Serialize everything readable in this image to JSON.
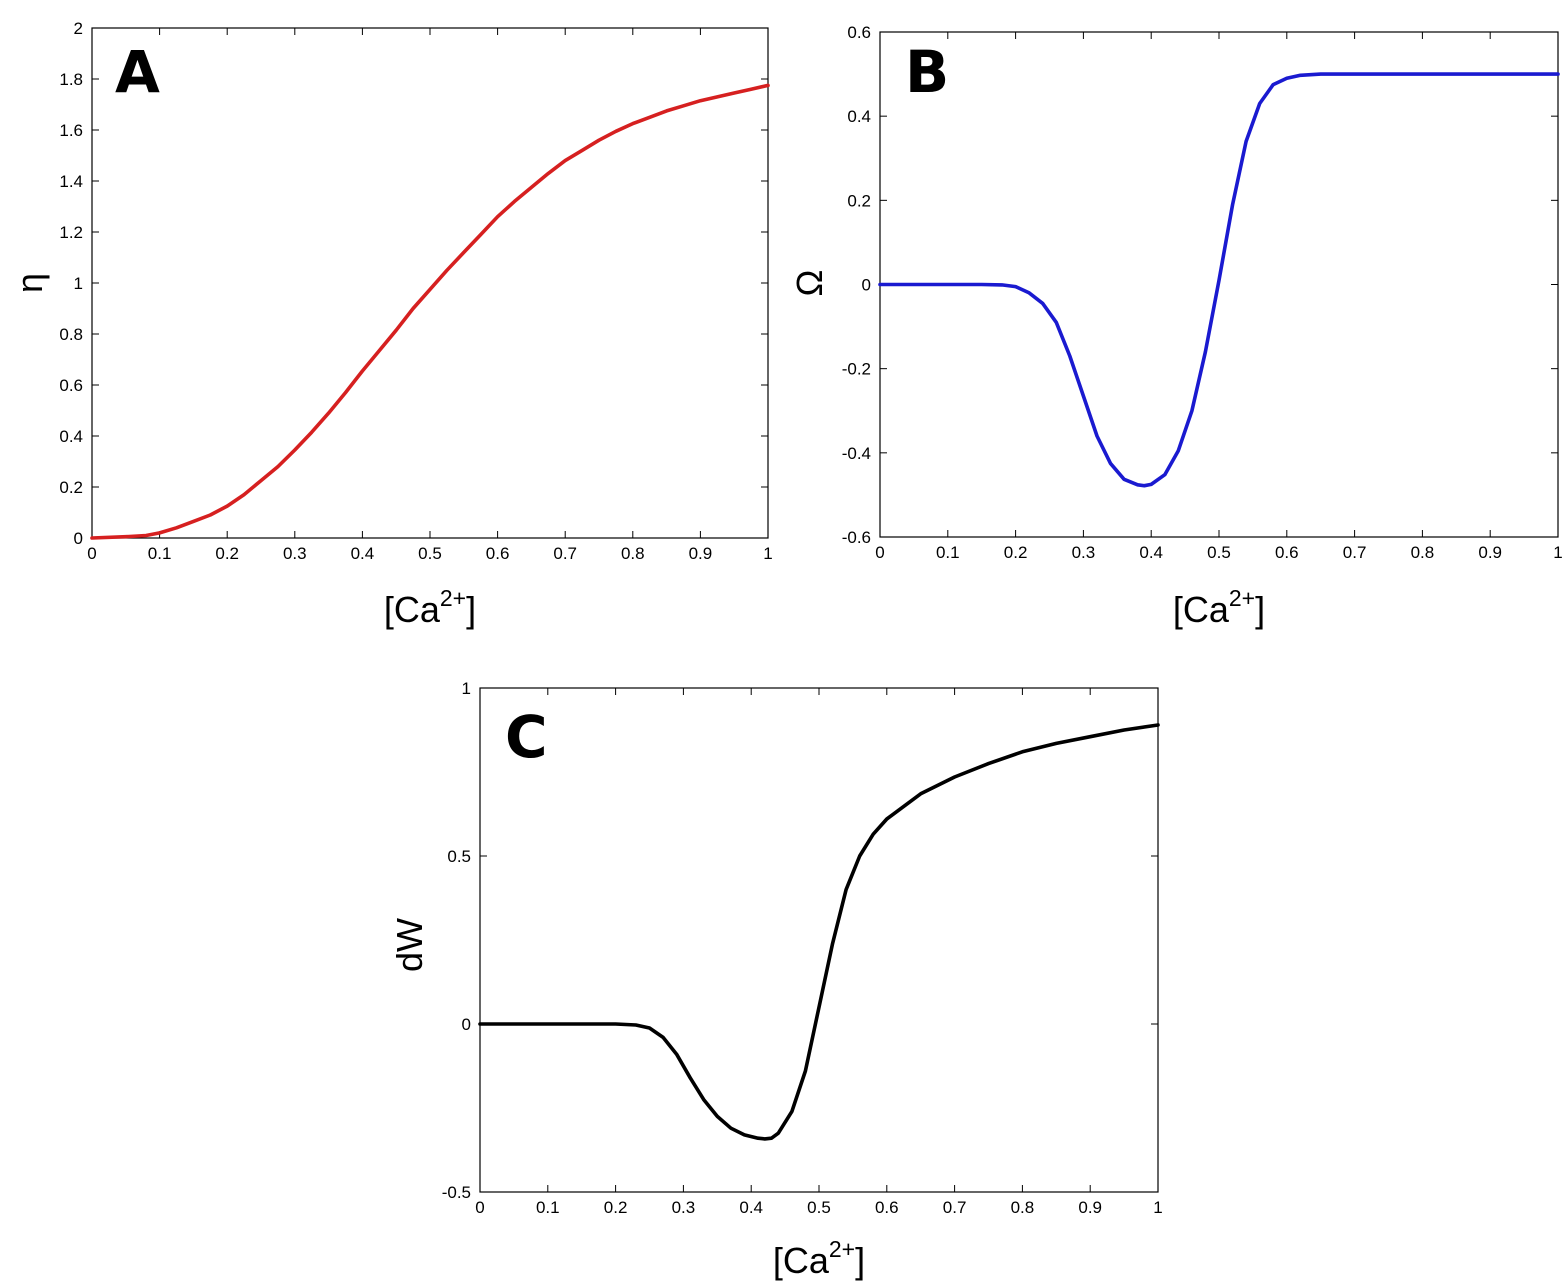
{
  "chart_data": [
    {
      "panel": "A",
      "type": "line",
      "title": "",
      "xlabel": "[Ca",
      "xlabel_sup": "2+",
      "xlabel_close": "]",
      "ylabel": "η",
      "xlim": [
        0,
        1
      ],
      "ylim": [
        0,
        2
      ],
      "xticks": [
        "0",
        "0.1",
        "0.2",
        "0.3",
        "0.4",
        "0.5",
        "0.6",
        "0.7",
        "0.8",
        "0.9",
        "1"
      ],
      "yticks": [
        "0",
        "0.2",
        "0.4",
        "0.6",
        "0.8",
        "1",
        "1.2",
        "1.4",
        "1.6",
        "1.8",
        "2"
      ],
      "grid": false,
      "color": "#d62020",
      "series": [
        {
          "x": [
            0,
            0.05,
            0.08,
            0.1,
            0.125,
            0.15,
            0.175,
            0.2,
            0.225,
            0.25,
            0.275,
            0.3,
            0.325,
            0.35,
            0.375,
            0.4,
            0.425,
            0.45,
            0.475,
            0.5,
            0.525,
            0.55,
            0.575,
            0.6,
            0.625,
            0.65,
            0.675,
            0.7,
            0.725,
            0.75,
            0.775,
            0.8,
            0.825,
            0.85,
            0.875,
            0.9,
            0.925,
            0.95,
            0.975,
            1.0
          ],
          "y": [
            0,
            0.005,
            0.01,
            0.02,
            0.04,
            0.065,
            0.09,
            0.125,
            0.17,
            0.225,
            0.28,
            0.345,
            0.415,
            0.49,
            0.57,
            0.655,
            0.735,
            0.815,
            0.9,
            0.975,
            1.05,
            1.12,
            1.19,
            1.26,
            1.32,
            1.375,
            1.43,
            1.48,
            1.52,
            1.56,
            1.595,
            1.625,
            1.65,
            1.675,
            1.695,
            1.715,
            1.73,
            1.745,
            1.76,
            1.775
          ]
        }
      ]
    },
    {
      "panel": "B",
      "type": "line",
      "title": "",
      "xlabel": "[Ca",
      "xlabel_sup": "2+",
      "xlabel_close": "]",
      "ylabel": "Ω",
      "xlim": [
        0,
        1
      ],
      "ylim": [
        -0.6,
        0.6
      ],
      "xticks": [
        "0",
        "0.1",
        "0.2",
        "0.3",
        "0.4",
        "0.5",
        "0.6",
        "0.7",
        "0.8",
        "0.9",
        "1"
      ],
      "yticks": [
        "-0.6",
        "-0.4",
        "-0.2",
        "0",
        "0.2",
        "0.4",
        "0.6"
      ],
      "grid": false,
      "color": "#1a1ad0",
      "series": [
        {
          "x": [
            0,
            0.15,
            0.18,
            0.2,
            0.22,
            0.24,
            0.26,
            0.28,
            0.3,
            0.32,
            0.34,
            0.36,
            0.38,
            0.39,
            0.4,
            0.42,
            0.44,
            0.46,
            0.48,
            0.5,
            0.52,
            0.54,
            0.56,
            0.58,
            0.6,
            0.62,
            0.65,
            0.7,
            0.8,
            1.0
          ],
          "y": [
            0,
            0,
            -0.001,
            -0.005,
            -0.02,
            -0.045,
            -0.09,
            -0.17,
            -0.265,
            -0.36,
            -0.425,
            -0.463,
            -0.476,
            -0.478,
            -0.475,
            -0.452,
            -0.395,
            -0.3,
            -0.16,
            0.01,
            0.19,
            0.34,
            0.43,
            0.475,
            0.49,
            0.497,
            0.5,
            0.5,
            0.5,
            0.5
          ]
        }
      ]
    },
    {
      "panel": "C",
      "type": "line",
      "title": "",
      "xlabel": "[Ca",
      "xlabel_sup": "2+",
      "xlabel_close": "]",
      "ylabel": "dW",
      "xlim": [
        0,
        1
      ],
      "ylim": [
        -0.5,
        1
      ],
      "xticks": [
        "0",
        "0.1",
        "0.2",
        "0.3",
        "0.4",
        "0.5",
        "0.6",
        "0.7",
        "0.8",
        "0.9",
        "1"
      ],
      "yticks": [
        "-0.5",
        "0",
        "0.5",
        "1"
      ],
      "grid": false,
      "color": "#000000",
      "series": [
        {
          "x": [
            0,
            0.2,
            0.23,
            0.25,
            0.27,
            0.29,
            0.31,
            0.33,
            0.35,
            0.37,
            0.39,
            0.41,
            0.42,
            0.43,
            0.44,
            0.46,
            0.48,
            0.5,
            0.52,
            0.54,
            0.56,
            0.58,
            0.6,
            0.65,
            0.7,
            0.75,
            0.8,
            0.85,
            0.9,
            0.95,
            1.0
          ],
          "y": [
            0,
            0,
            -0.003,
            -0.012,
            -0.04,
            -0.09,
            -0.16,
            -0.225,
            -0.275,
            -0.31,
            -0.33,
            -0.34,
            -0.342,
            -0.34,
            -0.325,
            -0.26,
            -0.14,
            0.05,
            0.24,
            0.4,
            0.5,
            0.565,
            0.61,
            0.685,
            0.735,
            0.775,
            0.81,
            0.835,
            0.855,
            0.875,
            0.89
          ]
        }
      ]
    }
  ]
}
